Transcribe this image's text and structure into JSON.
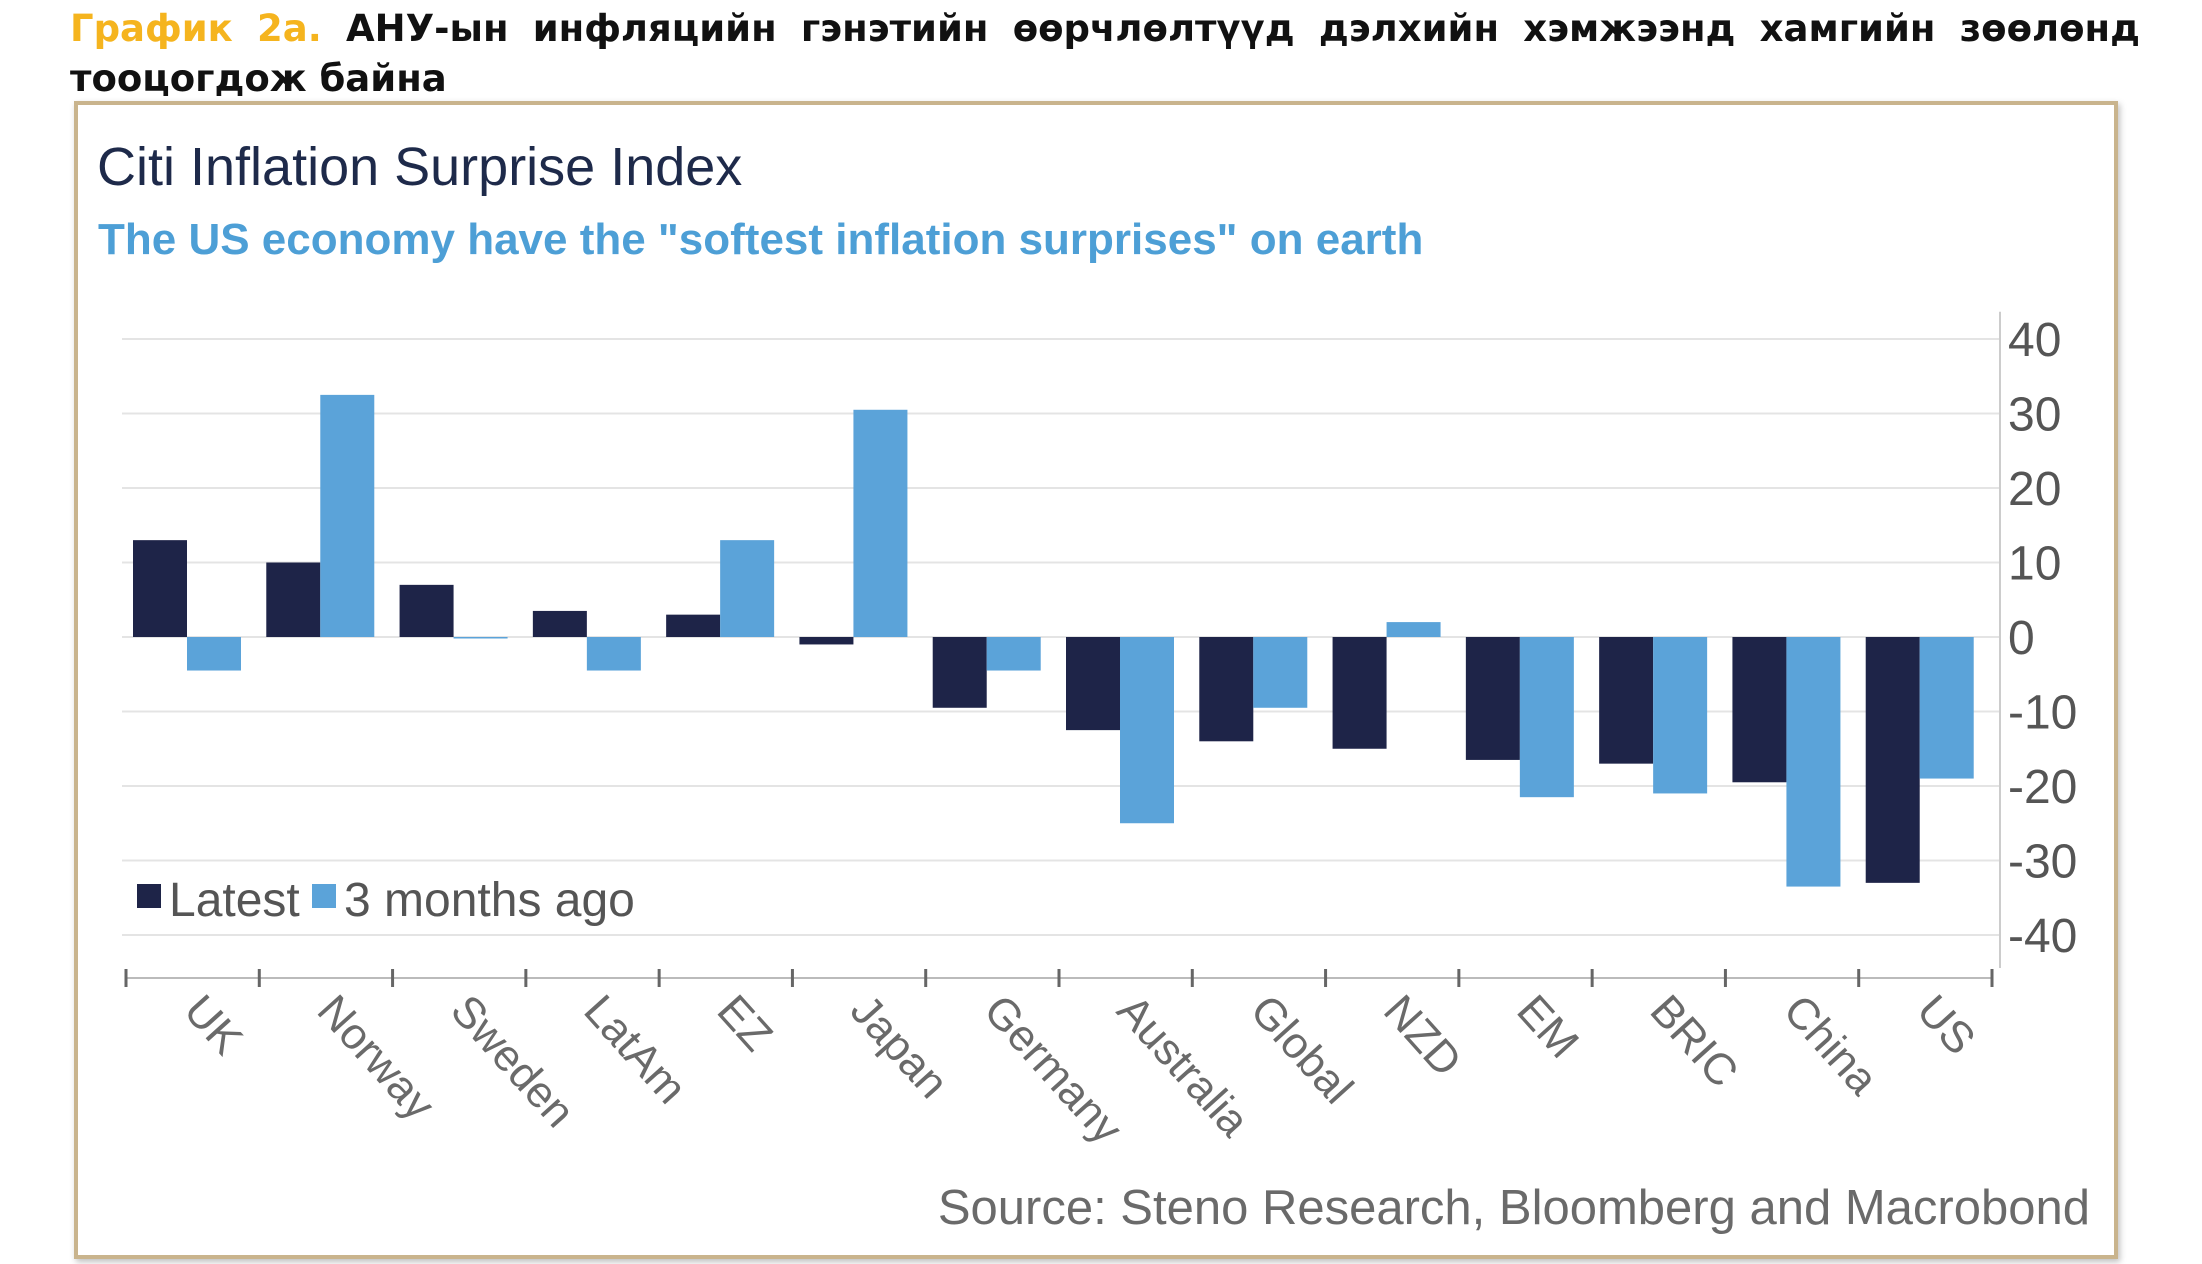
{
  "caption": {
    "label": "График 2а.",
    "text": " АНУ-ын инфляцийн гэнэтийн өөрчлөлтүүд дэлхийн хэмжээнд хамгийн зөөлөнд тооцогдож байна"
  },
  "source": "Source: Steno Research, Bloomberg and Macrobond",
  "colors": {
    "latest": "#1e2448",
    "three_months": "#5ba3d9",
    "grid": "#e4e4e4",
    "axis": "#666666",
    "frame": "#c9b48d",
    "caption_label": "#f5b41e",
    "title": "#1e2a4a",
    "subtitle": "#4d9fd6"
  },
  "chart_data": {
    "type": "bar",
    "title": "Citi Inflation Surprise Index",
    "subtitle": "The US economy have the \"softest inflation surprises\" on earth",
    "categories": [
      "UK",
      "Norway",
      "Sweden",
      "LatAm",
      "EZ",
      "Japan",
      "Germany",
      "Australia",
      "Global",
      "NZD",
      "EM",
      "BRIC",
      "China",
      "US"
    ],
    "series": [
      {
        "name": "Latest",
        "values": [
          13,
          10,
          7,
          3.5,
          3,
          -1,
          -9.5,
          -12.5,
          -14,
          -15,
          -16.5,
          -17,
          -19.5,
          -33
        ]
      },
      {
        "name": "3 months ago",
        "values": [
          -4.5,
          32.5,
          0,
          -4.5,
          13,
          30.5,
          -4.5,
          -25,
          -9.5,
          2,
          -21.5,
          -21,
          -33.5,
          -19
        ]
      }
    ],
    "yticks": [
      40,
      30,
      20,
      10,
      0,
      -10,
      -20,
      -30,
      -40
    ],
    "ylim": [
      -45,
      45
    ],
    "y_axis_side": "right",
    "grid": true,
    "legend": {
      "items": [
        "Latest",
        "3 months ago"
      ],
      "position": "lower-left"
    }
  }
}
